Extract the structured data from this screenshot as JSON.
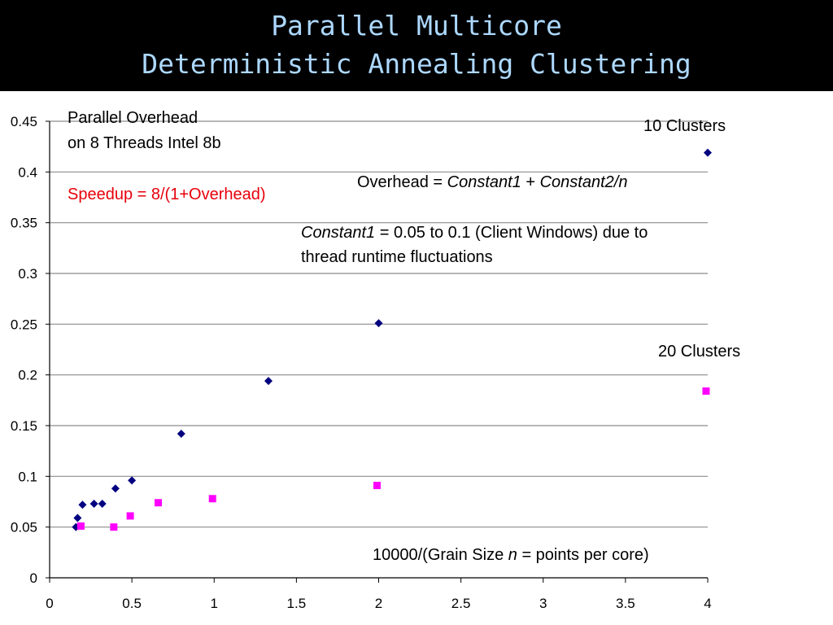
{
  "slide": {
    "title_line_1": "Parallel Multicore",
    "title_line_2": "Deterministic Annealing Clustering",
    "title_color": "#ADD8FF",
    "background": "#000000"
  },
  "annotations": {
    "overhead_title_1": "Parallel Overhead",
    "overhead_title_2": "on 8 Threads Intel 8b",
    "speedup": "Speedup = 8/(1+Overhead)",
    "formula_prefix": "Overhead = ",
    "formula_c1": "Constant1",
    "formula_mid": " + ",
    "formula_c2": "Constant2/n",
    "constant1_label": "Constant1",
    "constant1_text": " = 0.05 to 0.1 (Client Windows) due to",
    "constant1_text_2": "thread runtime fluctuations",
    "label_10": "10 Clusters",
    "label_20": "20 Clusters",
    "xlabel_prefix": "10000/(Grain Size ",
    "xlabel_n": "n",
    "xlabel_suffix": " = points per core)"
  },
  "chart_data": {
    "type": "scatter",
    "xlim": [
      0,
      4
    ],
    "ylim": [
      0,
      0.45
    ],
    "x_ticks": [
      "0",
      "0.5",
      "1",
      "1.5",
      "2",
      "2.5",
      "3",
      "3.5",
      "4"
    ],
    "y_ticks": [
      "0",
      "0.05",
      "0.1",
      "0.15",
      "0.2",
      "0.25",
      "0.3",
      "0.35",
      "0.4",
      "0.45"
    ],
    "grid": true,
    "series": [
      {
        "name": "10 Clusters",
        "marker": "diamond",
        "color": "#000080",
        "points": [
          {
            "x": 0.16,
            "y": 0.05
          },
          {
            "x": 0.17,
            "y": 0.059
          },
          {
            "x": 0.2,
            "y": 0.072
          },
          {
            "x": 0.27,
            "y": 0.073
          },
          {
            "x": 0.32,
            "y": 0.073
          },
          {
            "x": 0.4,
            "y": 0.088
          },
          {
            "x": 0.5,
            "y": 0.096
          },
          {
            "x": 0.8,
            "y": 0.142
          },
          {
            "x": 1.33,
            "y": 0.194
          },
          {
            "x": 2.0,
            "y": 0.251
          },
          {
            "x": 4.0,
            "y": 0.419
          }
        ]
      },
      {
        "name": "20 Clusters",
        "marker": "square",
        "color": "#FF00FF",
        "points": [
          {
            "x": 0.19,
            "y": 0.051
          },
          {
            "x": 0.39,
            "y": 0.05
          },
          {
            "x": 0.49,
            "y": 0.061
          },
          {
            "x": 0.66,
            "y": 0.074
          },
          {
            "x": 0.99,
            "y": 0.078
          },
          {
            "x": 1.99,
            "y": 0.091
          },
          {
            "x": 3.99,
            "y": 0.184
          }
        ]
      }
    ]
  }
}
